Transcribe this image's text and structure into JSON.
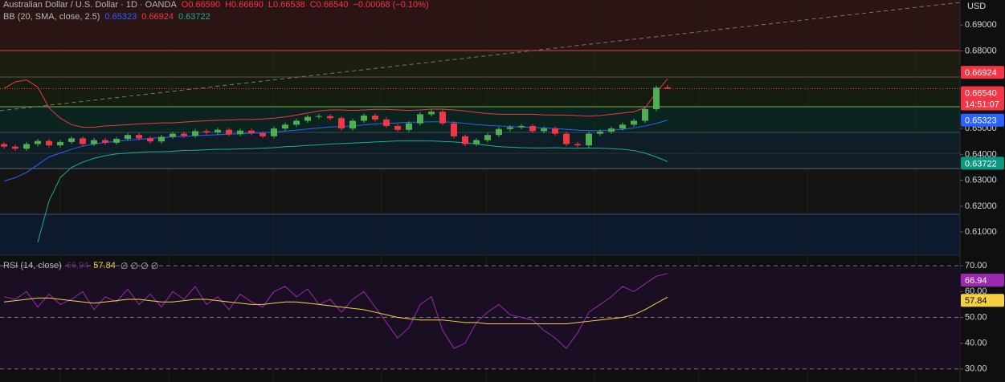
{
  "symbol_legend": {
    "title": "Australian Dollar / U.S. Dollar · 1D · OANDA",
    "open": "O0.66590",
    "high": "H0.66690",
    "low": "L0.66538",
    "close": "C0.66540",
    "change": "−0.00068 (−0.10%)"
  },
  "chart_data": [
    {
      "type": "candlestick",
      "currency": "USD",
      "up_color": "#4caf50",
      "down_color": "#f23645",
      "ylim": [
        0.60103,
        0.69969
      ],
      "yticks": [
        {
          "value": 0.61,
          "label": "0.61000"
        },
        {
          "value": 0.62,
          "label": "0.62000"
        },
        {
          "value": 0.63,
          "label": "0.63000"
        },
        {
          "value": 0.64,
          "label": "0.64000"
        },
        {
          "value": 0.65,
          "label": "0.65000"
        },
        {
          "value": 0.68,
          "label": "0.68000"
        },
        {
          "value": 0.69,
          "label": "0.69000"
        }
      ],
      "open": [
        0.644,
        0.643,
        0.6422,
        0.644,
        0.6452,
        0.6435,
        0.6448,
        0.6462,
        0.644,
        0.6455,
        0.6445,
        0.646,
        0.6475,
        0.6462,
        0.645,
        0.6468,
        0.648,
        0.6472,
        0.649,
        0.6485,
        0.6495,
        0.6478,
        0.6492,
        0.6482,
        0.647,
        0.65,
        0.6515,
        0.653,
        0.6545,
        0.6548,
        0.654,
        0.65,
        0.653,
        0.655,
        0.6535,
        0.651,
        0.6495,
        0.652,
        0.6555,
        0.6565,
        0.652,
        0.647,
        0.644,
        0.6455,
        0.6475,
        0.6498,
        0.6505,
        0.651,
        0.649,
        0.65,
        0.648,
        0.644,
        0.6435,
        0.648,
        0.6488,
        0.65,
        0.6515,
        0.653,
        0.6575,
        0.6659
      ],
      "high": [
        0.6448,
        0.6438,
        0.6448,
        0.646,
        0.646,
        0.6456,
        0.647,
        0.647,
        0.6463,
        0.6463,
        0.6468,
        0.6483,
        0.6483,
        0.647,
        0.6476,
        0.6488,
        0.6488,
        0.6498,
        0.6498,
        0.6503,
        0.6503,
        0.65,
        0.65,
        0.649,
        0.6508,
        0.6523,
        0.6538,
        0.6553,
        0.6556,
        0.6556,
        0.6548,
        0.6538,
        0.6558,
        0.6558,
        0.6543,
        0.6518,
        0.6528,
        0.6563,
        0.6573,
        0.6573,
        0.6528,
        0.6478,
        0.6463,
        0.6483,
        0.6506,
        0.6513,
        0.6518,
        0.6518,
        0.6508,
        0.6508,
        0.6488,
        0.6448,
        0.6488,
        0.6496,
        0.6508,
        0.6523,
        0.6538,
        0.6583,
        0.6666,
        0.6669
      ],
      "low": [
        0.6422,
        0.6414,
        0.6414,
        0.6432,
        0.6427,
        0.6427,
        0.644,
        0.6432,
        0.6432,
        0.6437,
        0.6437,
        0.6452,
        0.6454,
        0.6442,
        0.6442,
        0.646,
        0.6464,
        0.6464,
        0.6477,
        0.6477,
        0.647,
        0.647,
        0.6474,
        0.6462,
        0.6462,
        0.6492,
        0.6507,
        0.6522,
        0.6537,
        0.6532,
        0.6492,
        0.6492,
        0.6522,
        0.6527,
        0.6502,
        0.6487,
        0.6487,
        0.6512,
        0.6547,
        0.6512,
        0.6462,
        0.6432,
        0.6432,
        0.6447,
        0.6467,
        0.649,
        0.6497,
        0.6482,
        0.6482,
        0.6472,
        0.6432,
        0.6427,
        0.6427,
        0.6472,
        0.648,
        0.6492,
        0.6507,
        0.6522,
        0.6567,
        0.66538
      ],
      "close": [
        0.643,
        0.6422,
        0.644,
        0.6452,
        0.6435,
        0.6448,
        0.6462,
        0.644,
        0.6455,
        0.6445,
        0.646,
        0.6475,
        0.6462,
        0.645,
        0.6468,
        0.648,
        0.6472,
        0.649,
        0.6485,
        0.6495,
        0.6478,
        0.6492,
        0.6482,
        0.647,
        0.65,
        0.6515,
        0.653,
        0.6545,
        0.6548,
        0.654,
        0.65,
        0.653,
        0.655,
        0.6535,
        0.651,
        0.6495,
        0.652,
        0.6555,
        0.6565,
        0.652,
        0.647,
        0.644,
        0.6455,
        0.6475,
        0.6498,
        0.6505,
        0.651,
        0.649,
        0.65,
        0.648,
        0.644,
        0.6435,
        0.648,
        0.6488,
        0.65,
        0.6515,
        0.653,
        0.6575,
        0.6658,
        0.6654
      ],
      "last_price_label": "0.66540",
      "countdown": "14:51:07",
      "indicator": {
        "name": "BB (20, SMA, close, 2.5)",
        "series": [
          {
            "color": "#2962ff",
            "values": [
              0.6297,
              0.631,
              0.633,
              0.636,
              0.639,
              0.6405,
              0.642,
              0.6432,
              0.644,
              0.6446,
              0.645,
              0.6455,
              0.6458,
              0.6462,
              0.6465,
              0.6468,
              0.647,
              0.6472,
              0.6474,
              0.6476,
              0.6478,
              0.648,
              0.6482,
              0.6484,
              0.6486,
              0.649,
              0.6494,
              0.6498,
              0.6502,
              0.6506,
              0.6508,
              0.651,
              0.6514,
              0.6518,
              0.652,
              0.6522,
              0.6524,
              0.6525,
              0.6526,
              0.6526,
              0.6524,
              0.652,
              0.6515,
              0.6512,
              0.651,
              0.6508,
              0.6506,
              0.6504,
              0.6502,
              0.65,
              0.6497,
              0.6494,
              0.6492,
              0.6492,
              0.6494,
              0.6497,
              0.6502,
              0.651,
              0.652,
              0.65323
            ]
          },
          {
            "color": "#f23645",
            "values": [
              0.6655,
              0.668,
              0.6688,
              0.666,
              0.658,
              0.654,
              0.6515,
              0.6505,
              0.6505,
              0.651,
              0.6512,
              0.6515,
              0.6518,
              0.652,
              0.6522,
              0.6522,
              0.6525,
              0.6528,
              0.653,
              0.6532,
              0.6533,
              0.6535,
              0.6535,
              0.6537,
              0.654,
              0.6545,
              0.6552,
              0.656,
              0.6568,
              0.6572,
              0.6572,
              0.657,
              0.6572,
              0.6574,
              0.6574,
              0.6572,
              0.657,
              0.6572,
              0.6575,
              0.6575,
              0.6572,
              0.6568,
              0.6562,
              0.6558,
              0.6555,
              0.6555,
              0.6555,
              0.6555,
              0.6553,
              0.6552,
              0.6552,
              0.655,
              0.6548,
              0.655,
              0.6555,
              0.656,
              0.6565,
              0.658,
              0.664,
              0.66924
            ]
          },
          {
            "color": "#22ab94",
            "values": [
              null,
              null,
              null,
              0.606,
              0.622,
              0.631,
              0.635,
              0.637,
              0.6385,
              0.6395,
              0.6402,
              0.6405,
              0.6408,
              0.641,
              0.641,
              0.6412,
              0.6415,
              0.6416,
              0.6418,
              0.642,
              0.642,
              0.6421,
              0.6422,
              0.6424,
              0.6426,
              0.643,
              0.6432,
              0.6435,
              0.6437,
              0.644,
              0.6442,
              0.6444,
              0.6446,
              0.6448,
              0.645,
              0.6452,
              0.6452,
              0.6452,
              0.6452,
              0.645,
              0.6448,
              0.6445,
              0.644,
              0.6435,
              0.643,
              0.6428,
              0.6426,
              0.6425,
              0.6425,
              0.6426,
              0.6424,
              0.6424,
              0.6425,
              0.6424,
              0.6422,
              0.642,
              0.6415,
              0.6405,
              0.639,
              0.63722
            ]
          }
        ]
      }
    },
    {
      "type": "line",
      "title": "RSI (14, close)",
      "legend_extra": "∅ ∅ ∅ ∅",
      "ylim": [
        24.96,
        74.1
      ],
      "yticks": [
        {
          "value": 30,
          "label": "30.00"
        },
        {
          "value": 40,
          "label": "40.00"
        },
        {
          "value": 50,
          "label": "50.00"
        },
        {
          "value": 60,
          "label": "60.00"
        },
        {
          "value": 70,
          "label": "70.00"
        }
      ],
      "dashed_levels": [
        30,
        50,
        70
      ],
      "series": [
        {
          "color": "#9c27b0",
          "values": [
            58,
            57,
            60,
            54,
            59,
            55,
            57,
            60,
            53,
            58,
            56,
            61,
            55,
            59,
            54,
            60,
            57,
            62,
            55,
            58,
            53,
            59,
            56,
            54,
            60,
            62,
            58,
            61,
            55,
            57,
            52,
            57,
            60,
            54,
            48,
            42,
            46,
            55,
            58,
            45,
            38,
            40,
            48,
            52,
            55,
            51,
            50,
            49,
            45,
            42,
            38,
            44,
            52,
            55,
            58,
            62,
            60,
            63,
            66,
            66.94
          ]
        },
        {
          "color": "#f5d142",
          "values": [
            56,
            56.5,
            57,
            57.5,
            57.5,
            57,
            56.5,
            56,
            55.5,
            56,
            56.5,
            57,
            57,
            56.5,
            56,
            56,
            56.5,
            57,
            57,
            56.5,
            56,
            55.5,
            55,
            55,
            55.5,
            56,
            56,
            55.5,
            55,
            54.5,
            54,
            53.5,
            53,
            52,
            51,
            50,
            49.5,
            49,
            49,
            49,
            48.5,
            48,
            48,
            47.5,
            47.5,
            47.5,
            47.5,
            47.5,
            47.5,
            47.5,
            47.5,
            48,
            48.5,
            49,
            49.5,
            50,
            51,
            53,
            55.5,
            57.84
          ]
        }
      ]
    }
  ]
}
